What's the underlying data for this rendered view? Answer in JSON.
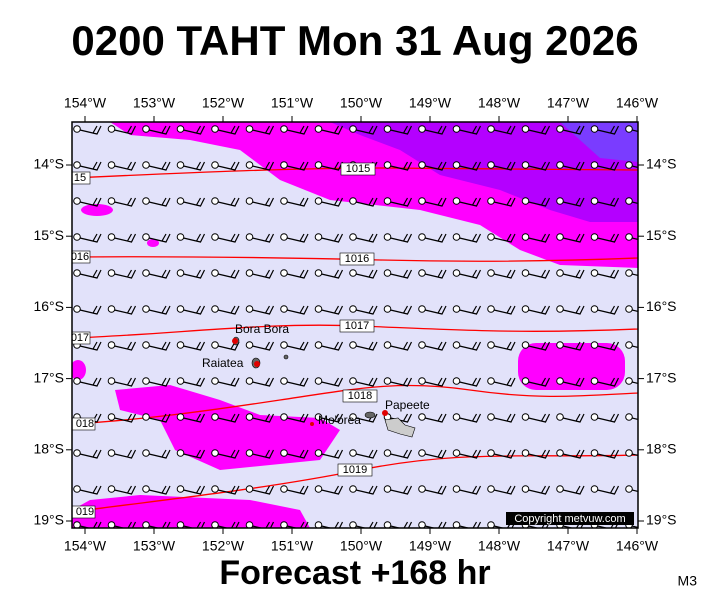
{
  "header": {
    "title": "0200 TAHT Mon 31 Aug 2026"
  },
  "footer": {
    "forecast": "Forecast +168 hr",
    "model": "M3"
  },
  "map": {
    "lon_labels": [
      "154°W",
      "153°W",
      "152°W",
      "151°W",
      "150°W",
      "149°W",
      "148°W",
      "147°W",
      "146°W"
    ],
    "lat_labels": [
      "14°S",
      "15°S",
      "16°S",
      "17°S",
      "18°S",
      "19°S"
    ],
    "isobars": [
      {
        "label": "1015",
        "edge_label": "15"
      },
      {
        "label": "1016",
        "edge_label": "016"
      },
      {
        "label": "1017",
        "edge_label": "017"
      },
      {
        "label": "1018",
        "edge_label": "018"
      },
      {
        "label": "1019",
        "edge_label": "019"
      }
    ],
    "places": [
      "Bora Bora",
      "Raiatea",
      "Mo'orea",
      "Papeete"
    ],
    "copyright": "Copyright metvuw.com"
  }
}
